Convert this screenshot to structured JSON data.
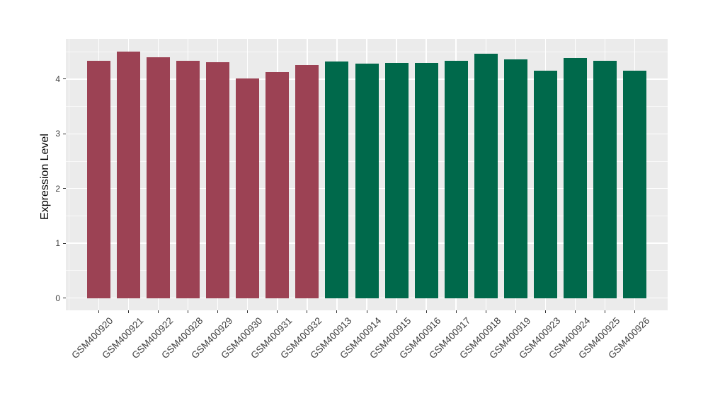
{
  "chart_data": {
    "type": "bar",
    "title": "",
    "xlabel": "",
    "ylabel": "Expression Level",
    "categories": [
      "GSM400920",
      "GSM400921",
      "GSM400922",
      "GSM400928",
      "GSM400929",
      "GSM400930",
      "GSM400931",
      "GSM400932",
      "GSM400913",
      "GSM400914",
      "GSM400915",
      "GSM400916",
      "GSM400917",
      "GSM400918",
      "GSM400919",
      "GSM400923",
      "GSM400924",
      "GSM400925",
      "GSM400926"
    ],
    "values": [
      4.33,
      4.5,
      4.4,
      4.33,
      4.31,
      4.01,
      4.13,
      4.26,
      4.32,
      4.28,
      4.3,
      4.3,
      4.33,
      4.46,
      4.36,
      4.16,
      4.39,
      4.33,
      4.16
    ],
    "bar_groups": [
      "group1",
      "group1",
      "group1",
      "group1",
      "group1",
      "group1",
      "group1",
      "group1",
      "group2",
      "group2",
      "group2",
      "group2",
      "group2",
      "group2",
      "group2",
      "group2",
      "group2",
      "group2",
      "group2"
    ],
    "group_colors": {
      "group1": "#9C4254",
      "group2": "#00694B"
    },
    "yticks": [
      "0",
      "1",
      "2",
      "3",
      "4"
    ],
    "ytick_values": [
      0,
      1,
      2,
      3,
      4
    ],
    "yminor_values": [
      0.5,
      1.5,
      2.5,
      3.5,
      4.5
    ],
    "ylim": [
      -0.225,
      4.735
    ],
    "grid": "major-and-minor",
    "legend": "none",
    "panel_bg": "#EBEBEB",
    "grid_color": "#FFFFFF",
    "axis_text_color": "#404040",
    "tick_mark_color": "#333333"
  }
}
